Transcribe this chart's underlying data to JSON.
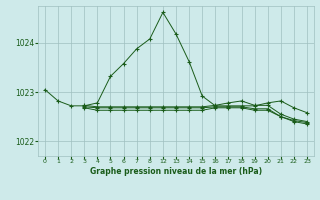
{
  "background_color": "#ceeaea",
  "plot_bg_color": "#ceeaea",
  "grid_color": "#a0c0c0",
  "line_color": "#1a5c1a",
  "title": "Graphe pression niveau de la mer (hPa)",
  "ylim": [
    1021.7,
    1024.75
  ],
  "yticks": [
    1022,
    1023,
    1024
  ],
  "x_hours": [
    0,
    1,
    2,
    3,
    4,
    5,
    6,
    7,
    8,
    12,
    13,
    14,
    15,
    16,
    17,
    18,
    19,
    20,
    21,
    22,
    23
  ],
  "x_labels": [
    "0",
    "1",
    "2",
    "3",
    "4",
    "5",
    "6",
    "7",
    "8",
    "12",
    "13",
    "14",
    "15",
    "16",
    "17",
    "18",
    "19",
    "20",
    "21",
    "22",
    "23"
  ],
  "line1_y": [
    1023.05,
    1022.82,
    1022.72,
    1022.72,
    1022.78,
    1023.32,
    1023.58,
    1023.88,
    1024.08,
    1024.62,
    1024.18,
    1023.62,
    1022.92,
    1022.72,
    1022.72,
    1022.72,
    1022.72,
    1022.78,
    1022.82,
    1022.68,
    1022.58
  ],
  "line2_y": [
    null,
    null,
    null,
    1022.68,
    1022.63,
    1022.63,
    1022.63,
    1022.63,
    1022.63,
    1022.63,
    1022.63,
    1022.63,
    1022.63,
    1022.68,
    1022.68,
    1022.68,
    1022.63,
    1022.63,
    1022.5,
    1022.4,
    1022.35
  ],
  "line3_y": [
    null,
    null,
    null,
    1022.73,
    1022.7,
    1022.7,
    1022.7,
    1022.7,
    1022.7,
    1022.7,
    1022.7,
    1022.7,
    1022.7,
    1022.73,
    1022.78,
    1022.82,
    1022.73,
    1022.73,
    1022.55,
    1022.45,
    1022.4
  ],
  "line4_y": [
    null,
    null,
    null,
    1022.7,
    1022.68,
    1022.68,
    1022.68,
    1022.68,
    1022.68,
    1022.68,
    1022.68,
    1022.68,
    1022.68,
    1022.7,
    1022.7,
    1022.7,
    1022.66,
    1022.66,
    1022.5,
    1022.42,
    1022.38
  ]
}
